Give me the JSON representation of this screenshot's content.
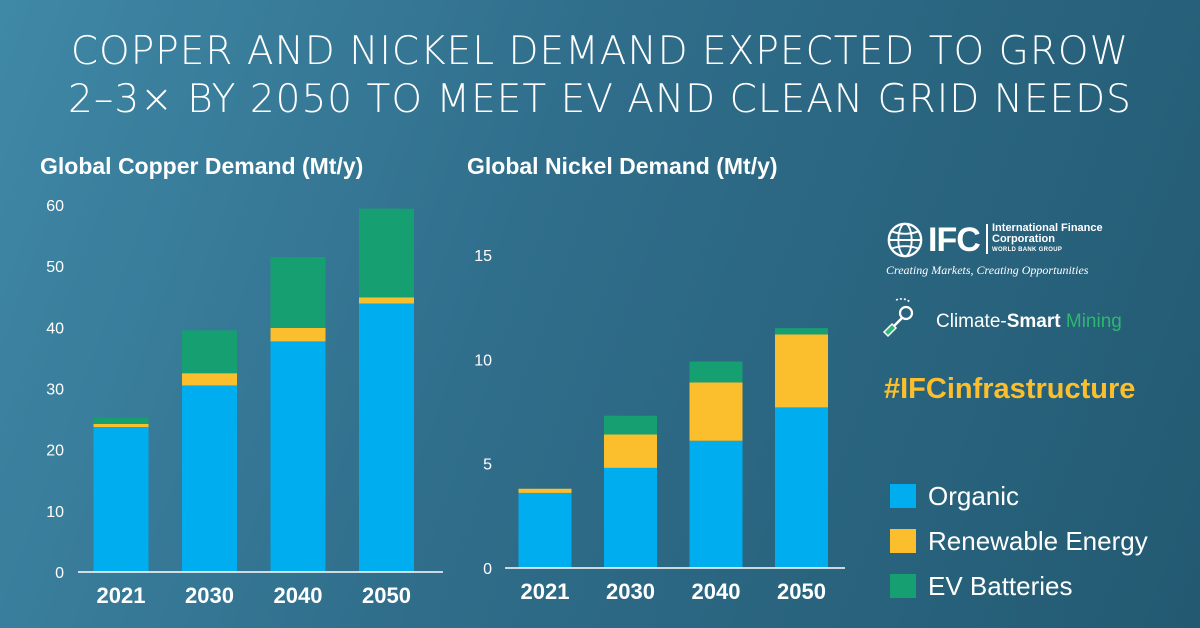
{
  "title": {
    "line1": "COPPER AND NICKEL DEMAND EXPECTED TO GROW",
    "line2": "2–3× BY 2050 TO MEET EV AND CLEAN GRID NEEDS"
  },
  "colors": {
    "organic": "#00adee",
    "renewable": "#fbbf2d",
    "ev": "#16a072",
    "grid_baseline": "#ffffff"
  },
  "legend": {
    "items": [
      {
        "label": "Organic",
        "color": "#00adee"
      },
      {
        "label": "Renewable Energy",
        "color": "#fbbf2d"
      },
      {
        "label": "EV Batteries",
        "color": "#16a072"
      }
    ]
  },
  "branding": {
    "ifc_letters": "IFC",
    "ifc_name": "International Finance Corporation",
    "ifc_group": "WORLD BANK GROUP",
    "ifc_tagline": "Creating Markets, Creating Opportunities",
    "csm_part1": "Climate-",
    "csm_part2": "Smart",
    "csm_part3": " Mining",
    "hashtag": "#IFCinfrastructure"
  },
  "chart_data": [
    {
      "type": "bar",
      "stacked": true,
      "title": "Global Copper Demand (Mt/y)",
      "categories": [
        "2021",
        "2030",
        "2040",
        "2050"
      ],
      "series": [
        {
          "name": "Organic",
          "values": [
            23.7,
            30.5,
            37.7,
            43.9
          ]
        },
        {
          "name": "Renewable Energy",
          "values": [
            0.5,
            2.0,
            2.2,
            1.0
          ]
        },
        {
          "name": "EV Batteries",
          "values": [
            1.0,
            7.0,
            11.6,
            14.5
          ]
        }
      ],
      "yticks": [
        0,
        10,
        20,
        30,
        40,
        50,
        60
      ],
      "ylim": [
        0,
        60
      ],
      "xlabel": "",
      "ylabel": "",
      "grid": false
    },
    {
      "type": "bar",
      "stacked": true,
      "title": "Global Nickel Demand (Mt/y)",
      "categories": [
        "2021",
        "2030",
        "2040",
        "2050"
      ],
      "series": [
        {
          "name": "Organic",
          "values": [
            3.6,
            4.8,
            6.1,
            7.7
          ]
        },
        {
          "name": "Renewable Energy",
          "values": [
            0.2,
            1.6,
            2.8,
            3.5
          ]
        },
        {
          "name": "EV Batteries",
          "values": [
            0.0,
            0.9,
            1.0,
            0.3
          ]
        }
      ],
      "yticks": [
        0,
        5,
        10,
        15
      ],
      "ylim": [
        0,
        17.5
      ],
      "xlabel": "",
      "ylabel": "",
      "grid": false
    }
  ]
}
